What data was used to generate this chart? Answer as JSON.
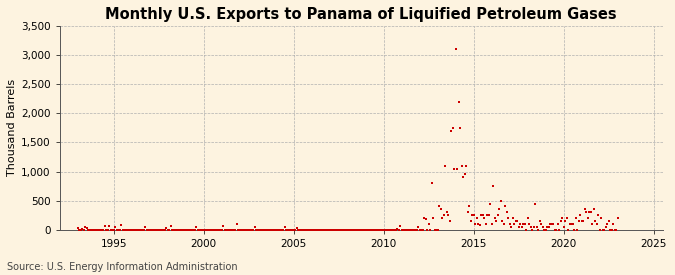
{
  "title": "Monthly U.S. Exports to Panama of Liquified Petroleum Gases",
  "ylabel": "Thousand Barrels",
  "source": "Source: U.S. Energy Information Administration",
  "xlim": [
    1992.0,
    2025.5
  ],
  "ylim": [
    0,
    3500
  ],
  "yticks": [
    0,
    500,
    1000,
    1500,
    2000,
    2500,
    3000,
    3500
  ],
  "ytick_labels": [
    "0",
    "500",
    "1,000",
    "1,500",
    "2,000",
    "2,500",
    "3,000",
    "3,500"
  ],
  "xticks": [
    1995,
    2000,
    2005,
    2010,
    2015,
    2020,
    2025
  ],
  "dot_color": "#cc0000",
  "background_color": "#fdf3e0",
  "grid_color": "#b0b0b0",
  "title_fontsize": 10.5,
  "label_fontsize": 8,
  "tick_fontsize": 7.5,
  "source_fontsize": 7,
  "dot_size": 3,
  "data_x": [
    1993.0,
    1993.083,
    1993.167,
    1993.25,
    1993.333,
    1993.417,
    1993.5,
    1993.583,
    1993.667,
    1993.75,
    1993.833,
    1993.917,
    1994.0,
    1994.083,
    1994.167,
    1994.25,
    1994.333,
    1994.417,
    1994.5,
    1994.583,
    1994.667,
    1994.75,
    1994.833,
    1994.917,
    1995.0,
    1995.083,
    1995.167,
    1995.25,
    1995.333,
    1995.417,
    1995.5,
    1995.583,
    1995.667,
    1995.75,
    1995.833,
    1995.917,
    1996.0,
    1996.083,
    1996.167,
    1996.25,
    1996.333,
    1996.417,
    1996.5,
    1996.583,
    1996.667,
    1996.75,
    1996.833,
    1996.917,
    1997.0,
    1997.083,
    1997.167,
    1997.25,
    1997.333,
    1997.417,
    1997.5,
    1997.583,
    1997.667,
    1997.75,
    1997.833,
    1997.917,
    1998.0,
    1998.083,
    1998.167,
    1998.25,
    1998.333,
    1998.417,
    1998.5,
    1998.583,
    1998.667,
    1998.75,
    1998.833,
    1998.917,
    1999.0,
    1999.083,
    1999.167,
    1999.25,
    1999.333,
    1999.417,
    1999.5,
    1999.583,
    1999.667,
    1999.75,
    1999.833,
    1999.917,
    2000.0,
    2000.083,
    2000.167,
    2000.25,
    2000.333,
    2000.417,
    2000.5,
    2000.583,
    2000.667,
    2000.75,
    2000.833,
    2000.917,
    2001.0,
    2001.083,
    2001.167,
    2001.25,
    2001.333,
    2001.417,
    2001.5,
    2001.583,
    2001.667,
    2001.75,
    2001.833,
    2001.917,
    2002.0,
    2002.083,
    2002.167,
    2002.25,
    2002.333,
    2002.417,
    2002.5,
    2002.583,
    2002.667,
    2002.75,
    2002.833,
    2002.917,
    2003.0,
    2003.083,
    2003.167,
    2003.25,
    2003.333,
    2003.417,
    2003.5,
    2003.583,
    2003.667,
    2003.75,
    2003.833,
    2003.917,
    2004.0,
    2004.083,
    2004.167,
    2004.25,
    2004.333,
    2004.417,
    2004.5,
    2004.583,
    2004.667,
    2004.75,
    2004.833,
    2004.917,
    2005.0,
    2005.083,
    2005.167,
    2005.25,
    2005.333,
    2005.417,
    2005.5,
    2005.583,
    2005.667,
    2005.75,
    2005.833,
    2005.917,
    2006.0,
    2006.083,
    2006.167,
    2006.25,
    2006.333,
    2006.417,
    2006.5,
    2006.583,
    2006.667,
    2006.75,
    2006.833,
    2006.917,
    2007.0,
    2007.083,
    2007.167,
    2007.25,
    2007.333,
    2007.417,
    2007.5,
    2007.583,
    2007.667,
    2007.75,
    2007.833,
    2007.917,
    2008.0,
    2008.083,
    2008.167,
    2008.25,
    2008.333,
    2008.417,
    2008.5,
    2008.583,
    2008.667,
    2008.75,
    2008.833,
    2008.917,
    2009.0,
    2009.083,
    2009.167,
    2009.25,
    2009.333,
    2009.417,
    2009.5,
    2009.583,
    2009.667,
    2009.75,
    2009.833,
    2009.917,
    2010.0,
    2010.083,
    2010.167,
    2010.25,
    2010.333,
    2010.417,
    2010.5,
    2010.583,
    2010.667,
    2010.75,
    2010.833,
    2010.917,
    2011.0,
    2011.083,
    2011.167,
    2011.25,
    2011.333,
    2011.417,
    2011.5,
    2011.583,
    2011.667,
    2011.75,
    2011.833,
    2011.917,
    2012.0,
    2012.083,
    2012.167,
    2012.25,
    2012.333,
    2012.417,
    2012.5,
    2012.583,
    2012.667,
    2012.75,
    2012.833,
    2012.917,
    2013.0,
    2013.083,
    2013.167,
    2013.25,
    2013.333,
    2013.417,
    2013.5,
    2013.583,
    2013.667,
    2013.75,
    2013.833,
    2013.917,
    2014.0,
    2014.083,
    2014.167,
    2014.25,
    2014.333,
    2014.417,
    2014.5,
    2014.583,
    2014.667,
    2014.75,
    2014.833,
    2014.917,
    2015.0,
    2015.083,
    2015.167,
    2015.25,
    2015.333,
    2015.417,
    2015.5,
    2015.583,
    2015.667,
    2015.75,
    2015.833,
    2015.917,
    2016.0,
    2016.083,
    2016.167,
    2016.25,
    2016.333,
    2016.417,
    2016.5,
    2016.583,
    2016.667,
    2016.75,
    2016.833,
    2016.917,
    2017.0,
    2017.083,
    2017.167,
    2017.25,
    2017.333,
    2017.417,
    2017.5,
    2017.583,
    2017.667,
    2017.75,
    2017.833,
    2017.917,
    2018.0,
    2018.083,
    2018.167,
    2018.25,
    2018.333,
    2018.417,
    2018.5,
    2018.583,
    2018.667,
    2018.75,
    2018.833,
    2018.917,
    2019.0,
    2019.083,
    2019.167,
    2019.25,
    2019.333,
    2019.417,
    2019.5,
    2019.583,
    2019.667,
    2019.75,
    2019.833,
    2019.917,
    2020.0,
    2020.083,
    2020.167,
    2020.25,
    2020.333,
    2020.417,
    2020.5,
    2020.583,
    2020.667,
    2020.75,
    2020.833,
    2020.917,
    2021.0,
    2021.083,
    2021.167,
    2021.25,
    2021.333,
    2021.417,
    2021.5,
    2021.583,
    2021.667,
    2021.75,
    2021.833,
    2021.917,
    2022.0,
    2022.083,
    2022.167,
    2022.25,
    2022.333,
    2022.417,
    2022.5,
    2022.583,
    2022.667,
    2022.75,
    2022.833,
    2022.917,
    2023.0
  ],
  "data_y": [
    30,
    0,
    0,
    20,
    0,
    50,
    30,
    0,
    0,
    0,
    0,
    0,
    0,
    0,
    0,
    0,
    0,
    0,
    70,
    0,
    0,
    60,
    0,
    0,
    0,
    40,
    0,
    0,
    0,
    80,
    0,
    0,
    0,
    0,
    0,
    0,
    0,
    0,
    0,
    0,
    0,
    0,
    0,
    0,
    0,
    50,
    0,
    0,
    0,
    0,
    0,
    0,
    0,
    0,
    0,
    0,
    0,
    0,
    0,
    30,
    0,
    0,
    60,
    0,
    0,
    0,
    0,
    0,
    0,
    0,
    0,
    0,
    0,
    0,
    0,
    0,
    0,
    0,
    0,
    50,
    0,
    0,
    0,
    0,
    0,
    0,
    0,
    0,
    0,
    0,
    0,
    0,
    0,
    0,
    0,
    0,
    0,
    60,
    0,
    0,
    0,
    0,
    0,
    0,
    0,
    0,
    100,
    0,
    0,
    0,
    0,
    0,
    0,
    0,
    0,
    0,
    0,
    0,
    40,
    0,
    0,
    0,
    0,
    0,
    0,
    0,
    0,
    0,
    0,
    0,
    0,
    0,
    0,
    0,
    0,
    0,
    0,
    0,
    50,
    0,
    0,
    0,
    0,
    0,
    0,
    0,
    30,
    0,
    0,
    0,
    0,
    0,
    0,
    0,
    0,
    0,
    0,
    0,
    0,
    0,
    0,
    0,
    0,
    0,
    0,
    0,
    0,
    0,
    0,
    0,
    0,
    0,
    0,
    0,
    0,
    0,
    0,
    0,
    0,
    0,
    0,
    0,
    0,
    0,
    0,
    0,
    0,
    0,
    0,
    0,
    0,
    0,
    0,
    0,
    0,
    0,
    0,
    0,
    0,
    0,
    0,
    0,
    0,
    0,
    0,
    0,
    0,
    0,
    0,
    0,
    0,
    0,
    0,
    20,
    0,
    60,
    0,
    0,
    0,
    0,
    0,
    0,
    0,
    0,
    0,
    0,
    0,
    40,
    0,
    0,
    0,
    200,
    180,
    0,
    100,
    0,
    800,
    200,
    0,
    0,
    0,
    400,
    350,
    200,
    250,
    1100,
    300,
    250,
    150,
    1700,
    1750,
    1050,
    3100,
    1050,
    2200,
    1750,
    1100,
    900,
    950,
    1100,
    300,
    400,
    150,
    250,
    250,
    100,
    200,
    100,
    80,
    250,
    250,
    200,
    100,
    250,
    250,
    450,
    100,
    750,
    200,
    150,
    250,
    350,
    500,
    150,
    100,
    400,
    300,
    200,
    100,
    50,
    200,
    100,
    150,
    150,
    50,
    100,
    50,
    100,
    100,
    0,
    200,
    100,
    50,
    0,
    50,
    450,
    50,
    0,
    150,
    100,
    50,
    0,
    0,
    50,
    50,
    100,
    100,
    100,
    0,
    0,
    100,
    0,
    150,
    200,
    50,
    150,
    200,
    0,
    100,
    100,
    100,
    0,
    200,
    0,
    150,
    250,
    150,
    150,
    350,
    300,
    200,
    300,
    300,
    100,
    350,
    150,
    100,
    250,
    0,
    200,
    0,
    0,
    50,
    100,
    150,
    0,
    0,
    100,
    0,
    0,
    200
  ]
}
